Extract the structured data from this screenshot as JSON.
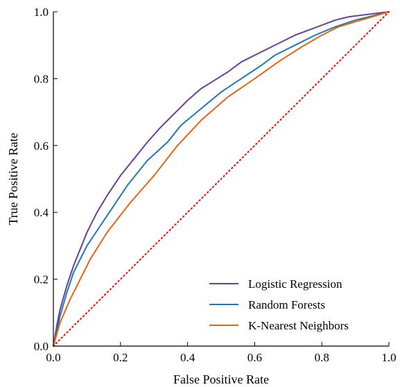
{
  "chart_data": {
    "type": "line",
    "xlabel": "False Positive Rate",
    "ylabel": "True Positive Rate",
    "xlim": [
      0,
      1
    ],
    "ylim": [
      0,
      1
    ],
    "xticks": [
      "0.0",
      "0.2",
      "0.4",
      "0.6",
      "0.8",
      "1.0"
    ],
    "yticks": [
      "0.0",
      "0.2",
      "0.4",
      "0.6",
      "0.8",
      "1.0"
    ],
    "grid": false,
    "legend_position": "bottom-right",
    "series": [
      {
        "name": "Logistic Regression",
        "color": "#6a3d9a",
        "x": [
          0,
          0.01,
          0.02,
          0.04,
          0.06,
          0.08,
          0.1,
          0.13,
          0.16,
          0.2,
          0.24,
          0.28,
          0.32,
          0.36,
          0.4,
          0.44,
          0.48,
          0.52,
          0.56,
          0.6,
          0.64,
          0.68,
          0.72,
          0.76,
          0.8,
          0.84,
          0.88,
          0.92,
          0.96,
          1.0
        ],
        "y": [
          0,
          0.06,
          0.11,
          0.18,
          0.24,
          0.29,
          0.34,
          0.4,
          0.45,
          0.51,
          0.56,
          0.61,
          0.655,
          0.695,
          0.735,
          0.77,
          0.795,
          0.82,
          0.85,
          0.87,
          0.89,
          0.91,
          0.93,
          0.945,
          0.96,
          0.975,
          0.985,
          0.99,
          0.995,
          1.0
        ]
      },
      {
        "name": "Random Forests",
        "color": "#1f77b4",
        "x": [
          0,
          0.02,
          0.04,
          0.06,
          0.1,
          0.16,
          0.22,
          0.28,
          0.34,
          0.38,
          0.44,
          0.5,
          0.56,
          0.62,
          0.66,
          0.72,
          0.78,
          0.84,
          0.9,
          0.96,
          1.0
        ],
        "y": [
          0,
          0.09,
          0.16,
          0.22,
          0.3,
          0.39,
          0.48,
          0.555,
          0.61,
          0.66,
          0.71,
          0.76,
          0.8,
          0.84,
          0.87,
          0.9,
          0.93,
          0.955,
          0.975,
          0.99,
          1.0
        ]
      },
      {
        "name": "K-Nearest Neighbors",
        "color": "#e8650f",
        "x": [
          0,
          0.02,
          0.05,
          0.08,
          0.11,
          0.16,
          0.23,
          0.3,
          0.37,
          0.44,
          0.52,
          0.6,
          0.67,
          0.74,
          0.8,
          0.85,
          0.9,
          0.95,
          1.0
        ],
        "y": [
          0,
          0.07,
          0.14,
          0.2,
          0.26,
          0.34,
          0.43,
          0.51,
          0.6,
          0.675,
          0.745,
          0.8,
          0.85,
          0.895,
          0.93,
          0.955,
          0.97,
          0.985,
          1.0
        ]
      },
      {
        "name": "",
        "color": "#ff0000",
        "style": "dotted",
        "x": [
          0,
          1
        ],
        "y": [
          0,
          1
        ]
      }
    ]
  }
}
